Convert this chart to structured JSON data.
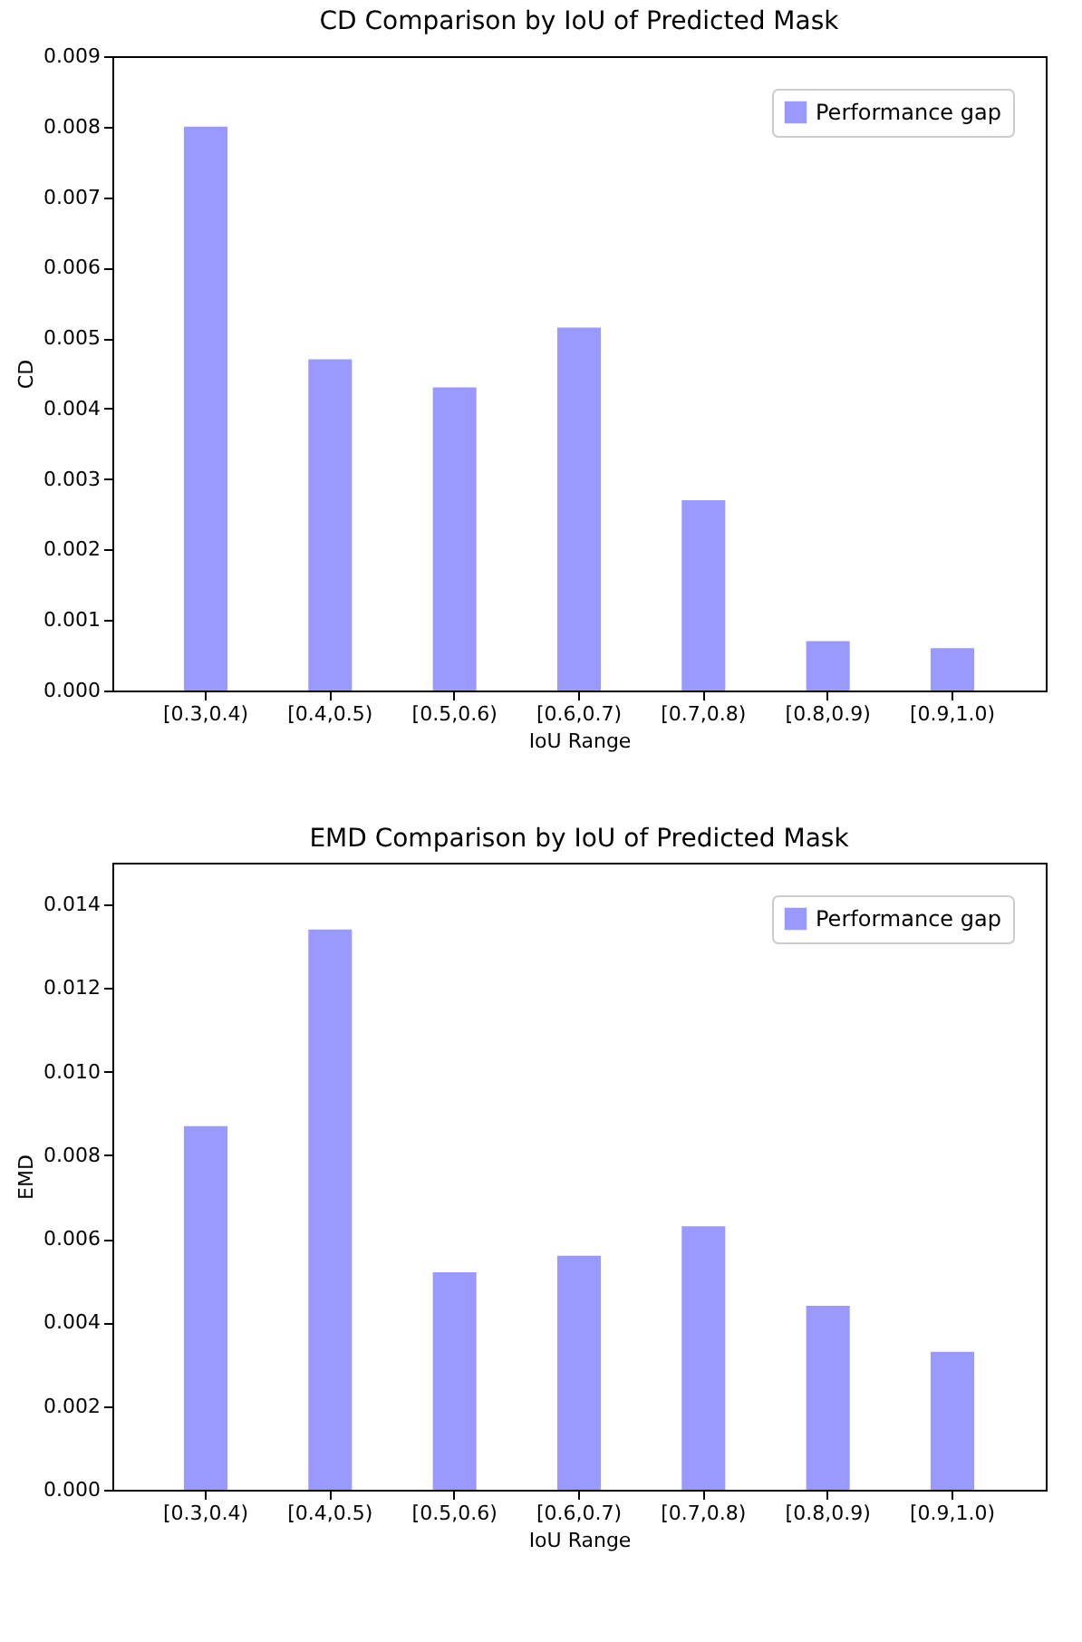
{
  "chart_data": [
    {
      "type": "bar",
      "title": "CD Comparison by IoU of Predicted Mask",
      "xlabel": "IoU Range",
      "ylabel": "CD",
      "categories": [
        "[0.3,0.4)",
        "[0.4,0.5)",
        "[0.5,0.6)",
        "[0.6,0.7)",
        "[0.7,0.8)",
        "[0.8,0.9)",
        "[0.9,1.0)"
      ],
      "series": [
        {
          "name": "Performance gap",
          "color": "#9999ff",
          "values": [
            0.008,
            0.0047,
            0.0043,
            0.00515,
            0.0027,
            0.0007,
            0.0006
          ]
        }
      ],
      "ylim": [
        0,
        0.009
      ],
      "yticks": [
        {
          "value": 0,
          "label": "0.000"
        },
        {
          "value": 0.001,
          "label": "0.001"
        },
        {
          "value": 0.002,
          "label": "0.002"
        },
        {
          "value": 0.003,
          "label": "0.003"
        },
        {
          "value": 0.004,
          "label": "0.004"
        },
        {
          "value": 0.005,
          "label": "0.005"
        },
        {
          "value": 0.006,
          "label": "0.006"
        },
        {
          "value": 0.007,
          "label": "0.007"
        },
        {
          "value": 0.008,
          "label": "0.008"
        },
        {
          "value": 0.009,
          "label": "0.009"
        }
      ],
      "grid": false,
      "legend": "top right"
    },
    {
      "type": "bar",
      "title": "EMD Comparison by IoU of Predicted Mask",
      "xlabel": "IoU Range",
      "ylabel": "EMD",
      "categories": [
        "[0.3,0.4)",
        "[0.4,0.5)",
        "[0.5,0.6)",
        "[0.6,0.7)",
        "[0.7,0.8)",
        "[0.8,0.9)",
        "[0.9,1.0)"
      ],
      "series": [
        {
          "name": "Performance gap",
          "color": "#9999ff",
          "values": [
            0.0087,
            0.0134,
            0.0052,
            0.0056,
            0.0063,
            0.0044,
            0.0033
          ]
        }
      ],
      "ylim": [
        0,
        0.015
      ],
      "yticks": [
        {
          "value": 0,
          "label": "0.000"
        },
        {
          "value": 0.002,
          "label": "0.002"
        },
        {
          "value": 0.004,
          "label": "0.004"
        },
        {
          "value": 0.006,
          "label": "0.006"
        },
        {
          "value": 0.008,
          "label": "0.008"
        },
        {
          "value": 0.01,
          "label": "0.010"
        },
        {
          "value": 0.012,
          "label": "0.012"
        },
        {
          "value": 0.014,
          "label": "0.014"
        }
      ],
      "grid": false,
      "legend": "top right"
    }
  ]
}
